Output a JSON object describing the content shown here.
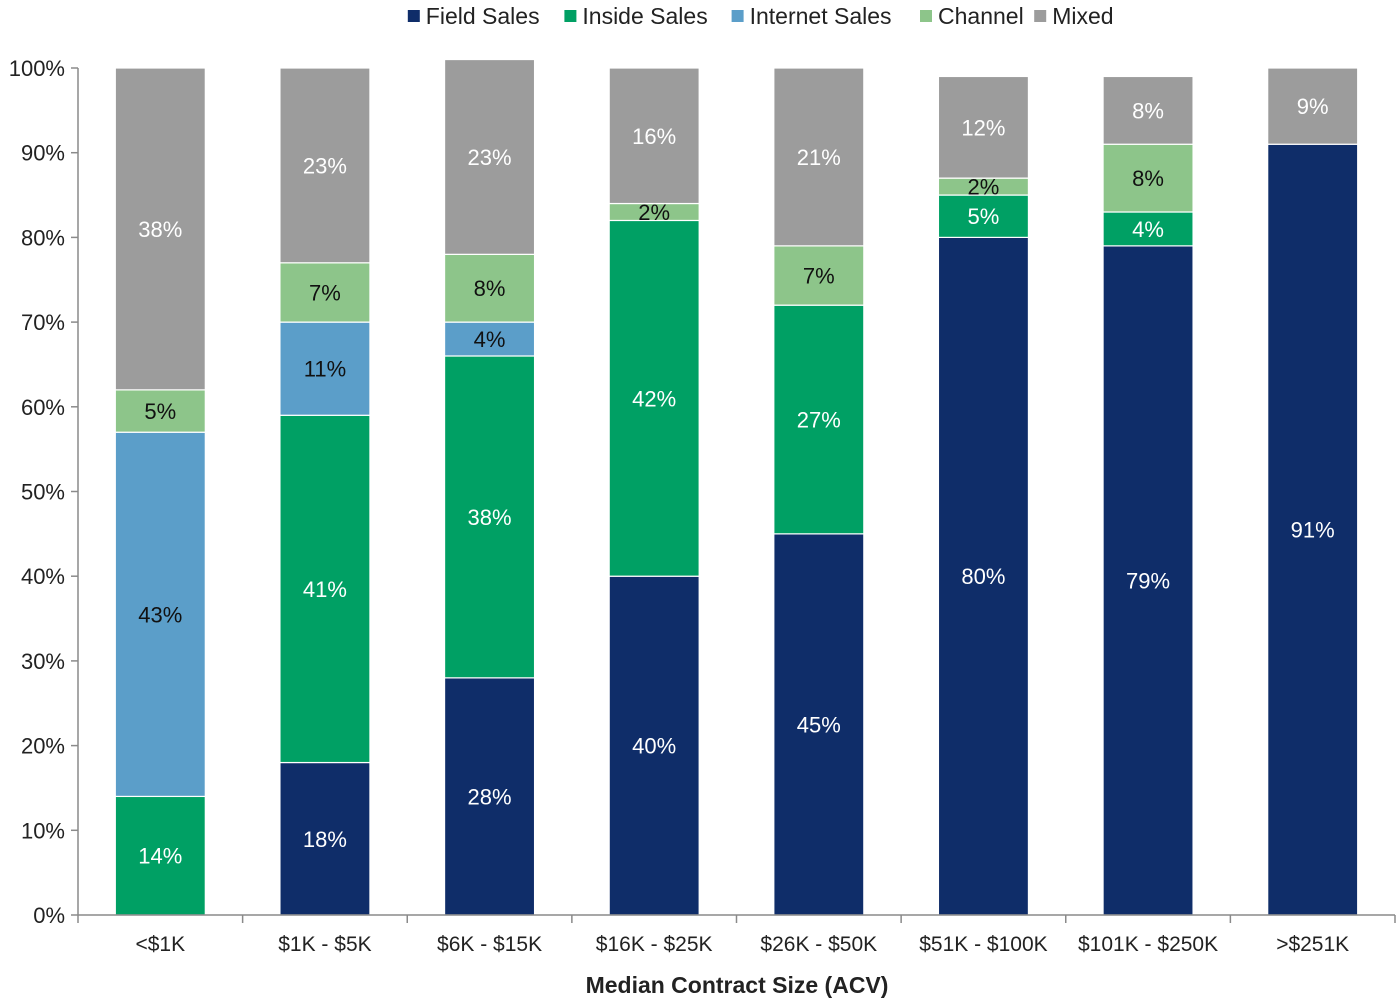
{
  "chart_data": {
    "type": "bar",
    "stacked": true,
    "title": "",
    "xlabel": "Median Contract Size (ACV)",
    "ylabel": "",
    "ylim": [
      0,
      100
    ],
    "yticks": [
      "0%",
      "10%",
      "20%",
      "30%",
      "40%",
      "50%",
      "60%",
      "70%",
      "80%",
      "90%",
      "100%"
    ],
    "legend_position": "top",
    "categories": [
      "<$1K",
      "$1K - $5K",
      "$6K - $15K",
      "$16K - $25K",
      "$26K - $50K",
      "$51K - $100K",
      "$101K - $250K",
      ">$251K"
    ],
    "series": [
      {
        "name": "Field Sales",
        "color": "#0f2d69",
        "label_color": "#ffffff",
        "values": [
          0,
          18,
          28,
          40,
          45,
          80,
          79,
          91
        ],
        "labels": [
          "",
          "18%",
          "28%",
          "40%",
          "45%",
          "80%",
          "79%",
          "91%"
        ]
      },
      {
        "name": "Inside Sales",
        "color": "#00a064",
        "label_color": "#ffffff",
        "values": [
          14,
          41,
          38,
          42,
          27,
          5,
          4,
          0
        ],
        "labels": [
          "14%",
          "41%",
          "38%",
          "42%",
          "27%",
          "5%",
          "4%",
          ""
        ]
      },
      {
        "name": "Internet Sales",
        "color": "#5b9ec9",
        "label_color": "#111111",
        "values": [
          43,
          11,
          4,
          0,
          0,
          0,
          0,
          0
        ],
        "labels": [
          "43%",
          "11%",
          "4%",
          "",
          "",
          "",
          "",
          ""
        ]
      },
      {
        "name": "Channel",
        "color": "#8dc58a",
        "label_color": "#111111",
        "values": [
          5,
          7,
          8,
          2,
          7,
          2,
          8,
          0
        ],
        "labels": [
          "5%",
          "7%",
          "8%",
          "2%",
          "7%",
          "2%",
          "8%",
          ""
        ]
      },
      {
        "name": "Mixed",
        "color": "#9c9c9c",
        "label_color": "#ffffff",
        "values": [
          38,
          23,
          23,
          16,
          21,
          12,
          8,
          9
        ],
        "labels": [
          "38%",
          "23%",
          "23%",
          "16%",
          "21%",
          "12%",
          "8%",
          "9%"
        ]
      }
    ]
  }
}
